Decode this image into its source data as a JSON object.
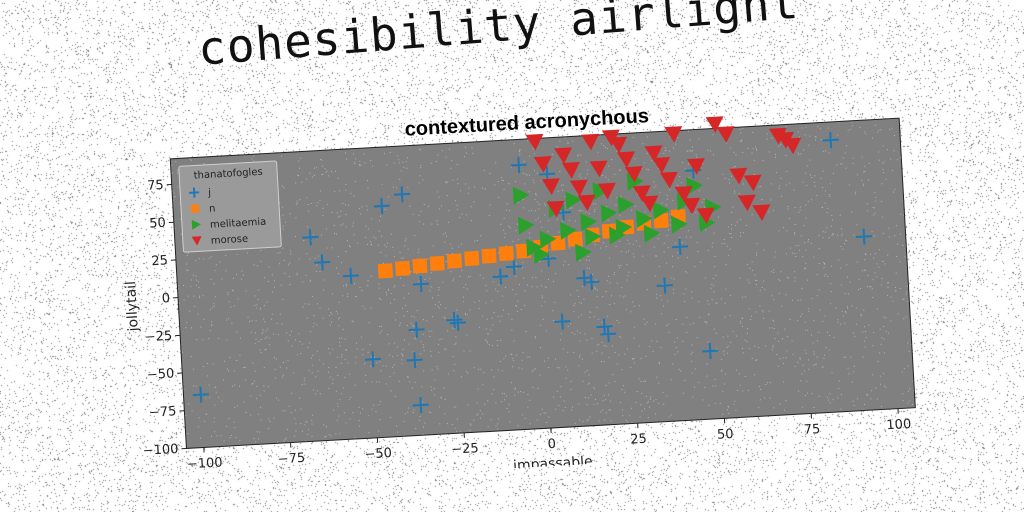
{
  "figure_title": "cohesibility airlight",
  "chart_data": {
    "type": "scatter",
    "title": "contextured acronychous",
    "xlabel": "impassable",
    "ylabel": "jollytail",
    "xlim": [
      -105,
      105
    ],
    "ylim": [
      -100,
      92
    ],
    "xticks": [
      -100,
      -75,
      -50,
      -25,
      0,
      25,
      50,
      75,
      100
    ],
    "yticks": [
      -100,
      -75,
      -50,
      -25,
      0,
      25,
      50,
      75
    ],
    "grid": false,
    "legend": {
      "title": "thanatofogles",
      "placement": "top-left"
    },
    "plot_background": "#808080",
    "series": [
      {
        "name": "j",
        "marker": "plus",
        "color": "#1f77b4",
        "points": [
          [
            -100,
            -65
          ],
          [
            -66,
            35
          ],
          [
            -63,
            18
          ],
          [
            -55,
            8
          ],
          [
            -45,
            53
          ],
          [
            -39,
            60
          ],
          [
            -35,
            0
          ],
          [
            -37,
            -30
          ],
          [
            -38,
            -50
          ],
          [
            -37,
            -80
          ],
          [
            -26,
            -25
          ],
          [
            -25,
            -27
          ],
          [
            -50,
            -48
          ],
          [
            -12,
            2
          ],
          [
            -8,
            8
          ],
          [
            -5,
            75
          ],
          [
            3,
            68
          ],
          [
            7,
            42
          ],
          [
            5,
            -30
          ],
          [
            12,
            -2
          ],
          [
            14,
            -5
          ],
          [
            17,
            -35
          ],
          [
            18,
            -40
          ],
          [
            35,
            -10
          ],
          [
            40,
            15
          ],
          [
            45,
            65
          ],
          [
            47,
            -55
          ],
          [
            85,
            80
          ],
          [
            93,
            15
          ],
          [
            2,
            12
          ]
        ]
      },
      {
        "name": "n",
        "marker": "square",
        "color": "#ff7f0e",
        "points": [
          [
            -45,
            10
          ],
          [
            -40,
            11
          ],
          [
            -35,
            12
          ],
          [
            -30,
            13
          ],
          [
            -25,
            14
          ],
          [
            -20,
            15
          ],
          [
            -15,
            16
          ],
          [
            -10,
            17
          ],
          [
            -5,
            18
          ],
          [
            0,
            20
          ],
          [
            5,
            22
          ],
          [
            10,
            24
          ],
          [
            15,
            26
          ],
          [
            20,
            28
          ],
          [
            25,
            30
          ],
          [
            30,
            32
          ],
          [
            35,
            33
          ],
          [
            40,
            35
          ]
        ]
      },
      {
        "name": "melitaemia",
        "marker": "triangle-right",
        "color": "#2ca02c",
        "points": [
          [
            -5,
            55
          ],
          [
            -4,
            35
          ],
          [
            -2,
            20
          ],
          [
            0,
            15
          ],
          [
            2,
            25
          ],
          [
            5,
            45
          ],
          [
            8,
            30
          ],
          [
            12,
            15
          ],
          [
            14,
            35
          ],
          [
            18,
            55
          ],
          [
            20,
            40
          ],
          [
            22,
            25
          ],
          [
            25,
            45
          ],
          [
            28,
            60
          ],
          [
            30,
            35
          ],
          [
            32,
            25
          ],
          [
            35,
            40
          ],
          [
            40,
            30
          ],
          [
            42,
            45
          ],
          [
            45,
            55
          ],
          [
            48,
            30
          ],
          [
            50,
            40
          ],
          [
            10,
            50
          ],
          [
            15,
            25
          ],
          [
            24,
            30
          ]
        ]
      },
      {
        "name": "morose",
        "marker": "triangle-down",
        "color": "#d62728",
        "points": [
          [
            0,
            90
          ],
          [
            2,
            75
          ],
          [
            4,
            60
          ],
          [
            5,
            45
          ],
          [
            8,
            80
          ],
          [
            10,
            70
          ],
          [
            12,
            58
          ],
          [
            14,
            48
          ],
          [
            16,
            88
          ],
          [
            18,
            70
          ],
          [
            20,
            55
          ],
          [
            22,
            90
          ],
          [
            24,
            85
          ],
          [
            26,
            75
          ],
          [
            28,
            65
          ],
          [
            30,
            52
          ],
          [
            32,
            45
          ],
          [
            34,
            78
          ],
          [
            36,
            70
          ],
          [
            38,
            60
          ],
          [
            40,
            90
          ],
          [
            42,
            50
          ],
          [
            44,
            42
          ],
          [
            46,
            68
          ],
          [
            48,
            35
          ],
          [
            52,
            95
          ],
          [
            55,
            88
          ],
          [
            58,
            60
          ],
          [
            60,
            42
          ],
          [
            62,
            55
          ],
          [
            64,
            35
          ],
          [
            70,
            85
          ],
          [
            72,
            82
          ],
          [
            74,
            78
          ]
        ]
      }
    ]
  }
}
